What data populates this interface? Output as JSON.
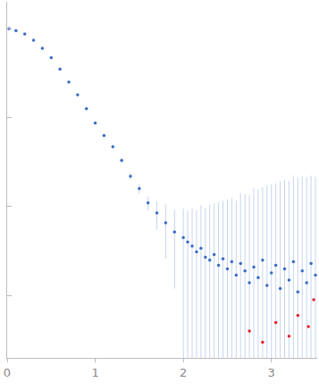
{
  "chart_data": {
    "type": "scatter",
    "log": "y",
    "tick_labels": "x",
    "grid": false,
    "xlim": [
      0,
      3.52
    ],
    "xticks": [
      0,
      1,
      2,
      3
    ],
    "ylim": [
      0.0002,
      2
    ],
    "yticks": [
      0.001,
      0.01,
      0.1,
      1
    ],
    "series": [
      {
        "color": "#3a6bc4",
        "marker": "circle",
        "x": [
          0.02,
          0.1,
          0.2,
          0.3,
          0.4,
          0.5,
          0.6,
          0.7,
          0.8,
          0.9,
          1.0,
          1.1,
          1.2,
          1.3,
          1.4,
          1.5,
          1.6,
          1.7,
          1.8,
          1.9,
          2.0,
          2.05,
          2.1,
          2.15,
          2.2,
          2.25,
          2.3,
          2.35,
          2.4,
          2.45,
          2.5,
          2.55,
          2.6,
          2.65,
          2.7,
          2.75,
          2.8,
          2.85,
          2.9,
          2.95,
          3.0,
          3.05,
          3.1,
          3.15,
          3.2,
          3.25,
          3.3,
          3.35,
          3.4,
          3.45,
          3.5
        ],
        "values": [
          1.0,
          0.95,
          0.87,
          0.74,
          0.6,
          0.47,
          0.35,
          0.25,
          0.18,
          0.126,
          0.087,
          0.063,
          0.047,
          0.033,
          0.022,
          0.016,
          0.011,
          0.0085,
          0.0066,
          0.0052,
          0.0045,
          0.004,
          0.0036,
          0.0031,
          0.0034,
          0.0027,
          0.0025,
          0.0029,
          0.0022,
          0.0026,
          0.002,
          0.0024,
          0.0017,
          0.0023,
          0.0019,
          0.0014,
          0.0021,
          0.0016,
          0.0025,
          0.0013,
          0.0018,
          0.0022,
          0.0012,
          0.002,
          0.0015,
          0.0024,
          0.0011,
          0.0019,
          0.0014,
          0.0023,
          0.0017
        ],
        "error": [
          0.005,
          0.005,
          0.005,
          0.004,
          0.004,
          0.003,
          0.003,
          0.003,
          0.002,
          0.002,
          0.002,
          0.002,
          0.002,
          0.002,
          0.002,
          0.002,
          0.002,
          0.003,
          0.004,
          0.004,
          0.005,
          0.005,
          0.006,
          0.006,
          0.007,
          0.007,
          0.008,
          0.008,
          0.009,
          0.009,
          0.01,
          0.01,
          0.01,
          0.012,
          0.012,
          0.012,
          0.014,
          0.014,
          0.014,
          0.016,
          0.016,
          0.016,
          0.018,
          0.018,
          0.018,
          0.02,
          0.02,
          0.02,
          0.02,
          0.02,
          0.02
        ]
      },
      {
        "color": "#e8202a",
        "marker": "circle",
        "x": [
          2.75,
          2.9,
          3.05,
          3.2,
          3.3,
          3.42,
          3.48
        ],
        "values": [
          0.0004,
          0.0003,
          0.0005,
          0.00035,
          0.0006,
          0.00045,
          0.0009
        ]
      }
    ]
  }
}
